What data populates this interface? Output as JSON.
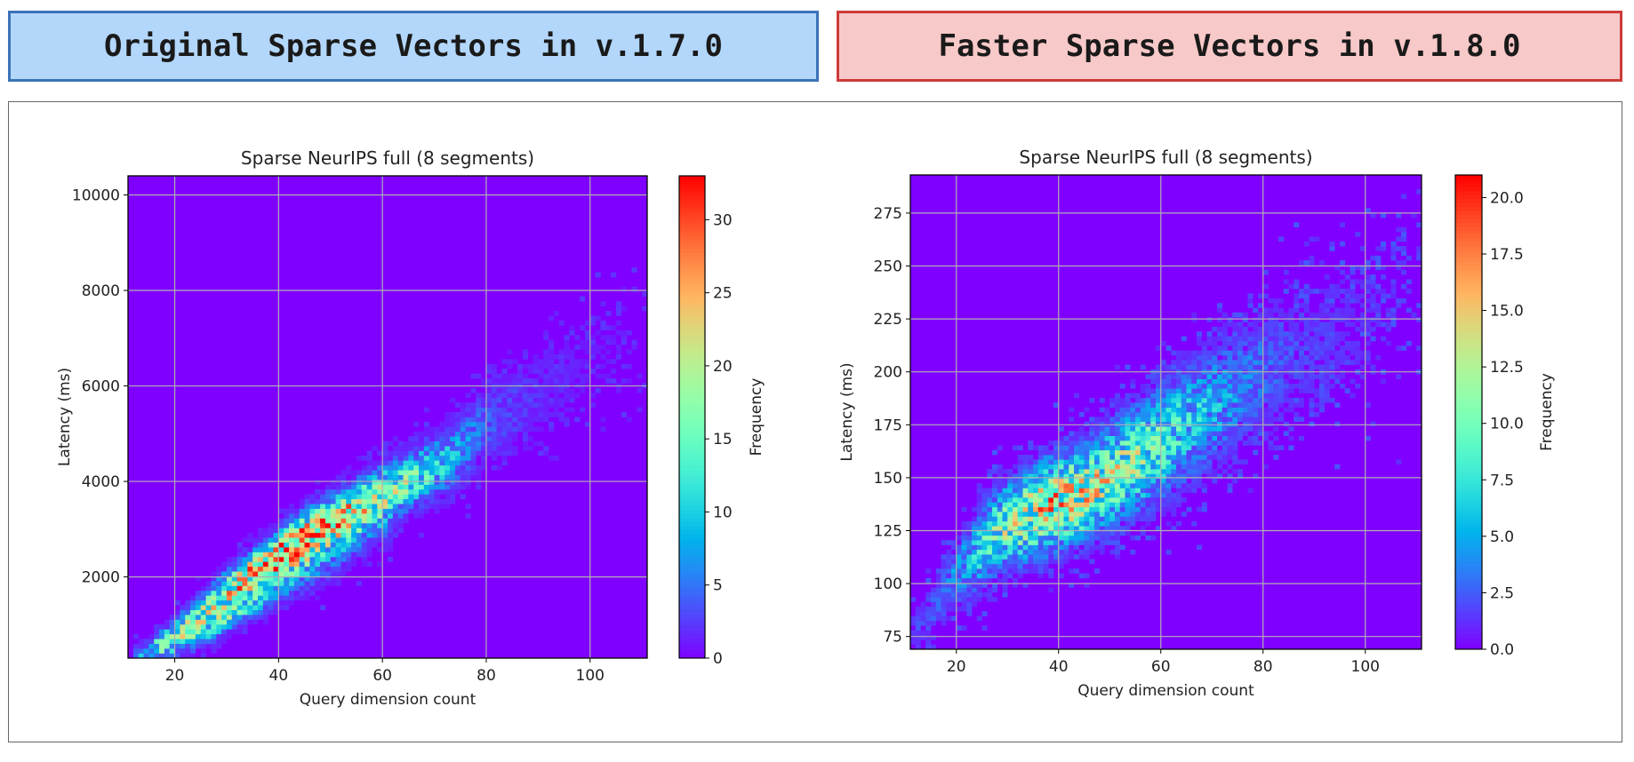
{
  "headers": {
    "left": "Original Sparse Vectors in v.1.7.0",
    "right": "Faster Sparse Vectors in v.1.8.0"
  },
  "chart_data": [
    {
      "type": "heatmap",
      "title": "Sparse NeurIPS full (8 segments)",
      "xlabel": "Query dimension count",
      "ylabel": "Latency (ms)",
      "colorbar_label": "Frequency",
      "colormap": "rainbow",
      "xlim": [
        11,
        111
      ],
      "ylim": [
        300,
        10400
      ],
      "xticks": [
        "20",
        "40",
        "60",
        "80",
        "100"
      ],
      "xtick_values": [
        20,
        40,
        60,
        80,
        100
      ],
      "yticks": [
        "2000",
        "4000",
        "6000",
        "8000",
        "10000"
      ],
      "ytick_values": [
        2000,
        4000,
        6000,
        8000,
        10000
      ],
      "colorbar_range": [
        0,
        33
      ],
      "colorbar_ticks": [
        "0",
        "5",
        "10",
        "15",
        "20",
        "25",
        "30"
      ],
      "colorbar_tick_values": [
        0,
        5,
        10,
        15,
        20,
        25,
        30
      ],
      "grid": true,
      "bands": [
        [
          [
            14,
            350,
            150,
            8
          ],
          [
            20,
            800,
            200,
            12
          ],
          [
            30,
            1700,
            250,
            20
          ],
          [
            38,
            2300,
            280,
            30
          ],
          [
            45,
            2800,
            330,
            30
          ],
          [
            55,
            3400,
            350,
            22
          ],
          [
            65,
            4000,
            350,
            16
          ],
          [
            72,
            4400,
            400,
            10
          ],
          [
            80,
            5200,
            500,
            4
          ],
          [
            90,
            5800,
            600,
            2
          ],
          [
            100,
            6500,
            700,
            1
          ],
          [
            110,
            7000,
            800,
            0.5
          ]
        ],
        [
          [
            18,
            500,
            150,
            6
          ],
          [
            25,
            850,
            200,
            12
          ],
          [
            32,
            1300,
            200,
            14
          ],
          [
            40,
            1800,
            250,
            8
          ],
          [
            50,
            2500,
            350,
            5
          ],
          [
            60,
            3200,
            400,
            3
          ]
        ]
      ]
    },
    {
      "type": "heatmap",
      "title": "Sparse NeurIPS full (8 segments)",
      "xlabel": "Query dimension count",
      "ylabel": "Latency (ms)",
      "colorbar_label": "Frequency",
      "colormap": "rainbow",
      "xlim": [
        11,
        111
      ],
      "ylim": [
        69,
        293
      ],
      "xticks": [
        "20",
        "40",
        "60",
        "80",
        "100"
      ],
      "xtick_values": [
        20,
        40,
        60,
        80,
        100
      ],
      "yticks": [
        "75",
        "100",
        "125",
        "150",
        "175",
        "200",
        "225",
        "250",
        "275"
      ],
      "ytick_values": [
        75,
        100,
        125,
        150,
        175,
        200,
        225,
        250,
        275
      ],
      "colorbar_range": [
        0,
        21
      ],
      "colorbar_ticks": [
        "0.0",
        "2.5",
        "5.0",
        "7.5",
        "10.0",
        "12.5",
        "15.0",
        "17.5",
        "20.0"
      ],
      "colorbar_tick_values": [
        0,
        2.5,
        5,
        7.5,
        10,
        12.5,
        15,
        17.5,
        20
      ],
      "grid": true,
      "bands": [
        [
          [
            13,
            80,
            8,
            1.5
          ],
          [
            20,
            105,
            10,
            4
          ],
          [
            28,
            125,
            12,
            10
          ],
          [
            38,
            137,
            13,
            15
          ],
          [
            45,
            143,
            13,
            14
          ],
          [
            55,
            158,
            15,
            11
          ],
          [
            65,
            175,
            17,
            7
          ],
          [
            75,
            192,
            18,
            4
          ],
          [
            85,
            208,
            20,
            2
          ],
          [
            100,
            225,
            22,
            1
          ],
          [
            110,
            245,
            25,
            0.6
          ]
        ]
      ]
    }
  ]
}
